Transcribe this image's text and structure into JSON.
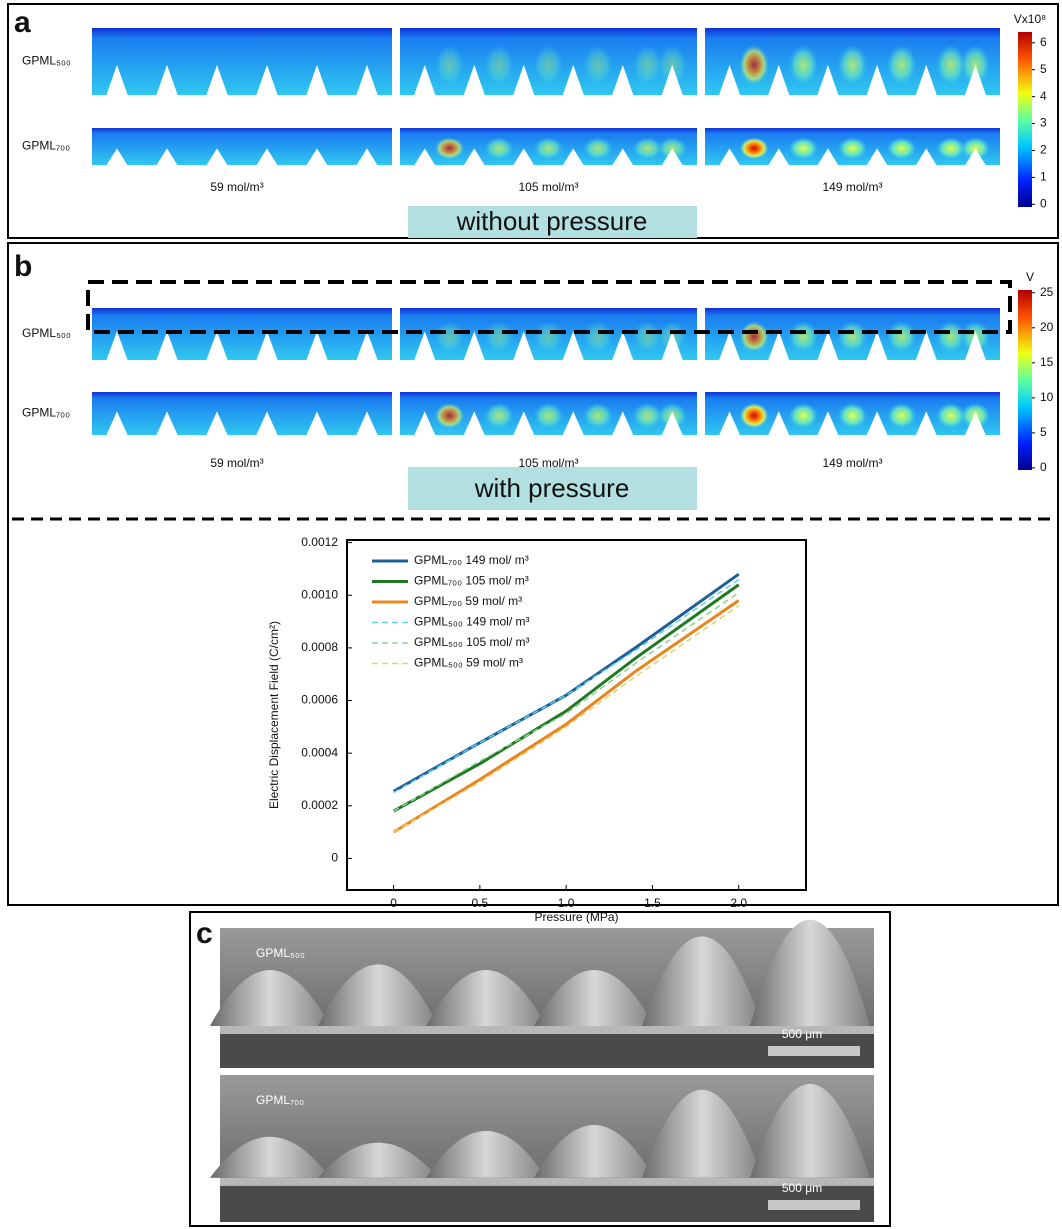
{
  "panel_a": {
    "label": "a",
    "rows": [
      "GPML₅₀₀",
      "GPML₇₀₀"
    ],
    "concentrations": [
      "59 mol/m³",
      "105 mol/m³",
      "149 mol/m³"
    ],
    "condition": "without pressure",
    "colorbar": {
      "title": "Vx10⁸",
      "lim": [
        -0.1,
        6.4
      ],
      "ticks": [
        0,
        1,
        2,
        3,
        4,
        5,
        6
      ]
    }
  },
  "panel_b": {
    "label": "b",
    "rows": [
      "GPML₅₀₀",
      "GPML₇₀₀"
    ],
    "concentrations": [
      "59 mol/m³",
      "105 mol/m³",
      "149 mol/m³"
    ],
    "condition": "with pressure",
    "colorbar": {
      "title": "V",
      "lim": [
        -0.3,
        25.4
      ],
      "ticks": [
        0,
        5,
        10,
        15,
        20,
        25
      ]
    }
  },
  "chart_data": {
    "type": "line",
    "x_label": "Pressure (MPa)",
    "y_label": "Electric Displacement Field (C/cm²)",
    "x": [
      0,
      0.5,
      1,
      1.4,
      2
    ],
    "xlim": [
      -0.27,
      2.39
    ],
    "ylim": [
      -0.00012,
      0.00121
    ],
    "xticks": [
      0,
      0.5,
      {
        "value": 1,
        "label": "1.0"
      },
      1.5,
      {
        "value": 2,
        "label": "2.0"
      }
    ],
    "yticks": [
      0,
      0.0002,
      0.0004,
      0.0006,
      0.0008,
      {
        "value": 0.001,
        "label": "0.0010"
      },
      0.0012
    ],
    "series": [
      {
        "name": "GPML₇₀₀ 149 mol/ m³",
        "color": "#1f5f99",
        "dashed": false,
        "values": [
          0.000255,
          0.00044,
          0.00062,
          0.0008,
          0.00108
        ]
      },
      {
        "name": "GPML₇₀₀ 105 mol/ m³",
        "color": "#1f7a1f",
        "dashed": false,
        "values": [
          0.00018,
          0.00036,
          0.00056,
          0.00076,
          0.00104
        ]
      },
      {
        "name": "GPML₇₀₀ 59 mol/ m³",
        "color": "#e8861e",
        "dashed": false,
        "values": [
          0.0001,
          0.0003,
          0.00051,
          0.00071,
          0.00098
        ]
      },
      {
        "name": "GPML₅₀₀ 149 mol/ m³",
        "color": "#5fd0e8",
        "dashed": true,
        "values": [
          0.00025,
          0.00044,
          0.00062,
          0.00079,
          0.00106
        ]
      },
      {
        "name": "GPML₅₀₀ 105 mol/ m³",
        "color": "#8fd09a",
        "dashed": true,
        "values": [
          0.00018,
          0.00037,
          0.00055,
          0.00074,
          0.00101
        ]
      },
      {
        "name": "GPML₅₀₀ 59 mol/ m³",
        "color": "#e8d070",
        "dashed": true,
        "values": [
          0.0001,
          0.00029,
          0.0005,
          0.00069,
          0.00096
        ]
      }
    ]
  },
  "panel_c": {
    "label": "c",
    "images": [
      {
        "label": "GPML₅₀₀",
        "scale_bar": "500 μm"
      },
      {
        "label": "GPML₇₀₀",
        "scale_bar": "500 μm"
      }
    ]
  }
}
